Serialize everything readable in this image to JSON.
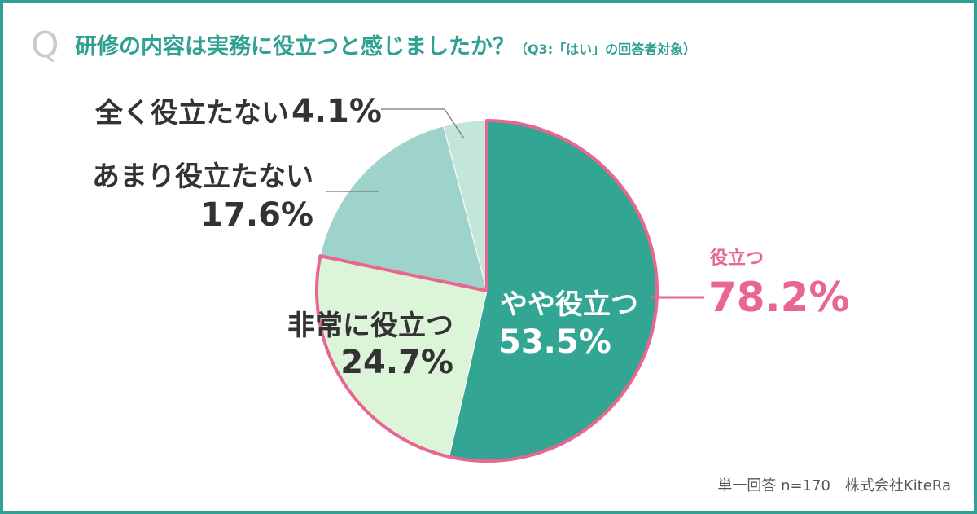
{
  "header": {
    "q_mark": "Q",
    "title": "研修の内容は実務に役立つと感じましたか？",
    "note": "（Q3:「はい」の回答者対象）"
  },
  "chart_data": {
    "type": "pie",
    "title": "研修の内容は実務に役立つと感じましたか？",
    "slices": [
      {
        "label": "やや役立つ",
        "value": 53.5,
        "value_text": "53.5%",
        "color": "#33a593"
      },
      {
        "label": "非常に役立つ",
        "value": 24.7,
        "value_text": "24.7%",
        "color": "#dcf5d8"
      },
      {
        "label": "あまり役立たない",
        "value": 17.6,
        "value_text": "17.6%",
        "color": "#9dd3ca"
      },
      {
        "label": "全く役立たない",
        "value": 4.1,
        "value_text": "4.1%",
        "color": "#c4e6da"
      }
    ],
    "highlight": {
      "label": "役立つ",
      "value": 78.2,
      "value_text": "78.2%",
      "color": "#e8668f",
      "includes": [
        "やや役立つ",
        "非常に役立つ"
      ]
    }
  },
  "footer": {
    "text": "単一回答 n=170　株式会社KiteRa"
  }
}
